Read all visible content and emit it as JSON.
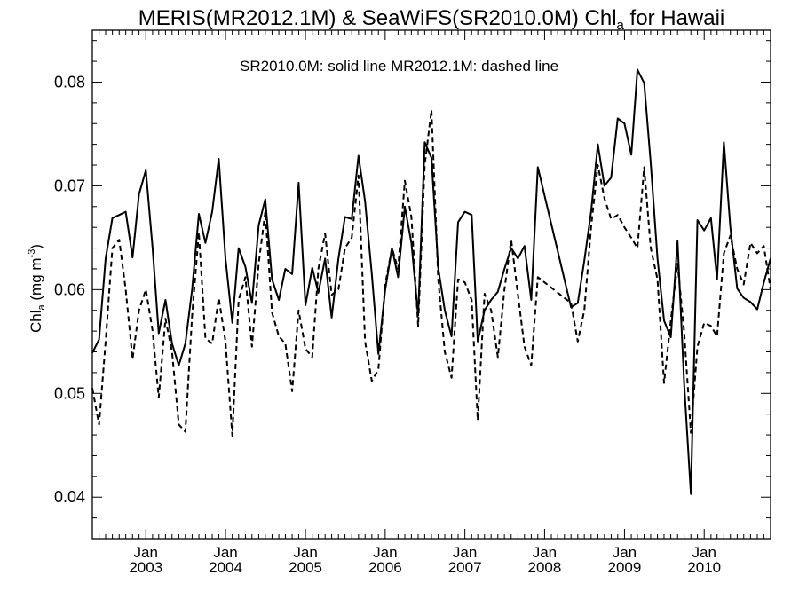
{
  "chart_data": {
    "type": "line",
    "title": {
      "main": "MERIS(MR2012.1M) & SeaWiFS(SR2010.0M)  Chl",
      "sub": "a",
      "tail": " for Hawaii"
    },
    "ylabel": {
      "main": "Chl",
      "sub": "a",
      "units": " (mg m",
      "sup": "-3",
      "close": ")"
    },
    "annotation": "SR2010.0M: solid line   MR2012.1M: dashed line",
    "xlim": [
      "2002-05-01",
      "2010-11-01"
    ],
    "ylim": [
      0.036,
      0.085
    ],
    "yticks": [
      {
        "value": 0.04,
        "label": "0.04"
      },
      {
        "value": 0.05,
        "label": "0.05"
      },
      {
        "value": 0.06,
        "label": "0.06"
      },
      {
        "value": 0.07,
        "label": "0.07"
      },
      {
        "value": 0.08,
        "label": "0.08"
      }
    ],
    "xticks": [
      {
        "date": "2003-01-01",
        "month": "Jan",
        "year": "2003"
      },
      {
        "date": "2004-01-01",
        "month": "Jan",
        "year": "2004"
      },
      {
        "date": "2005-01-01",
        "month": "Jan",
        "year": "2005"
      },
      {
        "date": "2006-01-01",
        "month": "Jan",
        "year": "2006"
      },
      {
        "date": "2007-01-01",
        "month": "Jan",
        "year": "2007"
      },
      {
        "date": "2008-01-01",
        "month": "Jan",
        "year": "2008"
      },
      {
        "date": "2009-01-01",
        "month": "Jan",
        "year": "2009"
      },
      {
        "date": "2010-01-01",
        "month": "Jan",
        "year": "2010"
      }
    ],
    "grid": false,
    "series": [
      {
        "name": "SR2010.0M",
        "style": "solid",
        "color": "#000000",
        "points": [
          [
            "2002-05-01",
            0.0539
          ],
          [
            "2002-06-01",
            0.0552
          ],
          [
            "2002-07-01",
            0.063
          ],
          [
            "2002-08-01",
            0.0669
          ],
          [
            "2002-09-01",
            0.0672
          ],
          [
            "2002-10-01",
            0.0675
          ],
          [
            "2002-11-01",
            0.0631
          ],
          [
            "2002-12-01",
            0.0692
          ],
          [
            "2003-01-01",
            0.0715
          ],
          [
            "2003-02-01",
            0.064
          ],
          [
            "2003-03-01",
            0.0558
          ],
          [
            "2003-04-01",
            0.059
          ],
          [
            "2003-05-01",
            0.0548
          ],
          [
            "2003-06-01",
            0.0527
          ],
          [
            "2003-07-01",
            0.0548
          ],
          [
            "2003-08-01",
            0.06
          ],
          [
            "2003-09-01",
            0.0673
          ],
          [
            "2003-10-01",
            0.0645
          ],
          [
            "2003-11-01",
            0.0675
          ],
          [
            "2003-12-01",
            0.0726
          ],
          [
            "2004-01-01",
            0.063
          ],
          [
            "2004-02-01",
            0.0568
          ],
          [
            "2004-03-01",
            0.064
          ],
          [
            "2004-04-01",
            0.0622
          ],
          [
            "2004-05-01",
            0.0587
          ],
          [
            "2004-06-01",
            0.0662
          ],
          [
            "2004-07-01",
            0.0687
          ],
          [
            "2004-08-01",
            0.061
          ],
          [
            "2004-09-01",
            0.059
          ],
          [
            "2004-10-01",
            0.062
          ],
          [
            "2004-11-01",
            0.0615
          ],
          [
            "2004-12-01",
            0.0703
          ],
          [
            "2005-01-01",
            0.0585
          ],
          [
            "2005-02-01",
            0.0621
          ],
          [
            "2005-03-01",
            0.0597
          ],
          [
            "2005-04-01",
            0.063
          ],
          [
            "2005-05-01",
            0.0573
          ],
          [
            "2005-06-01",
            0.063
          ],
          [
            "2005-07-01",
            0.067
          ],
          [
            "2005-08-01",
            0.0668
          ],
          [
            "2005-09-01",
            0.0729
          ],
          [
            "2005-10-01",
            0.0685
          ],
          [
            "2005-11-01",
            0.0615
          ],
          [
            "2005-12-01",
            0.0538
          ],
          [
            "2006-01-01",
            0.06
          ],
          [
            "2006-02-01",
            0.064
          ],
          [
            "2006-03-01",
            0.0612
          ],
          [
            "2006-04-01",
            0.068
          ],
          [
            "2006-05-01",
            0.0645
          ],
          [
            "2006-06-01",
            0.0575
          ],
          [
            "2006-07-01",
            0.0742
          ],
          [
            "2006-08-01",
            0.0727
          ],
          [
            "2006-09-01",
            0.0621
          ],
          [
            "2006-10-01",
            0.058
          ],
          [
            "2006-11-01",
            0.0555
          ],
          [
            "2006-12-01",
            0.0665
          ],
          [
            "2007-01-01",
            0.0675
          ],
          [
            "2007-02-01",
            0.0672
          ],
          [
            "2007-03-01",
            0.055
          ],
          [
            "2007-04-01",
            0.058
          ],
          [
            "2007-05-01",
            0.059
          ],
          [
            "2007-06-01",
            0.0598
          ],
          [
            "2007-07-01",
            0.062
          ],
          [
            "2007-08-01",
            0.064
          ],
          [
            "2007-09-01",
            0.063
          ],
          [
            "2007-10-01",
            0.0642
          ],
          [
            "2007-11-01",
            0.059
          ],
          [
            "2007-12-01",
            0.0718
          ],
          [
            "2008-05-01",
            0.0583
          ],
          [
            "2008-06-01",
            0.0587
          ],
          [
            "2008-07-01",
            0.0628
          ],
          [
            "2008-08-01",
            0.0675
          ],
          [
            "2008-09-01",
            0.074
          ],
          [
            "2008-10-01",
            0.07
          ],
          [
            "2008-11-01",
            0.0708
          ],
          [
            "2008-12-01",
            0.0765
          ],
          [
            "2009-01-01",
            0.076
          ],
          [
            "2009-02-01",
            0.073
          ],
          [
            "2009-03-01",
            0.0812
          ],
          [
            "2009-04-01",
            0.0799
          ],
          [
            "2009-05-01",
            0.0722
          ],
          [
            "2009-06-01",
            0.063
          ],
          [
            "2009-07-01",
            0.057
          ],
          [
            "2009-08-01",
            0.0554
          ],
          [
            "2009-09-01",
            0.0647
          ],
          [
            "2009-10-01",
            0.051
          ],
          [
            "2009-11-01",
            0.0403
          ],
          [
            "2009-12-01",
            0.0667
          ],
          [
            "2010-01-01",
            0.0657
          ],
          [
            "2010-02-01",
            0.0669
          ],
          [
            "2010-03-01",
            0.061
          ],
          [
            "2010-04-01",
            0.0742
          ],
          [
            "2010-05-01",
            0.066
          ],
          [
            "2010-06-01",
            0.0601
          ],
          [
            "2010-07-01",
            0.0592
          ],
          [
            "2010-08-01",
            0.0588
          ],
          [
            "2010-09-01",
            0.0581
          ],
          [
            "2010-10-01",
            0.0607
          ],
          [
            "2010-11-01",
            0.063
          ]
        ]
      },
      {
        "name": "MR2012.1M",
        "style": "dashed",
        "color": "#000000",
        "points": [
          [
            "2002-05-01",
            0.0505
          ],
          [
            "2002-06-01",
            0.047
          ],
          [
            "2002-07-01",
            0.055
          ],
          [
            "2002-08-01",
            0.064
          ],
          [
            "2002-09-01",
            0.0648
          ],
          [
            "2002-10-01",
            0.06
          ],
          [
            "2002-11-01",
            0.0533
          ],
          [
            "2002-12-01",
            0.058
          ],
          [
            "2003-01-01",
            0.06
          ],
          [
            "2003-02-01",
            0.056
          ],
          [
            "2003-03-01",
            0.0496
          ],
          [
            "2003-04-01",
            0.0572
          ],
          [
            "2003-05-01",
            0.054
          ],
          [
            "2003-06-01",
            0.047
          ],
          [
            "2003-07-01",
            0.0463
          ],
          [
            "2003-08-01",
            0.0575
          ],
          [
            "2003-09-01",
            0.0655
          ],
          [
            "2003-10-01",
            0.0553
          ],
          [
            "2003-11-01",
            0.0548
          ],
          [
            "2003-12-01",
            0.0592
          ],
          [
            "2004-01-01",
            0.055
          ],
          [
            "2004-02-01",
            0.0459
          ],
          [
            "2004-03-01",
            0.059
          ],
          [
            "2004-04-01",
            0.0612
          ],
          [
            "2004-05-01",
            0.0545
          ],
          [
            "2004-06-01",
            0.0625
          ],
          [
            "2004-07-01",
            0.0675
          ],
          [
            "2004-08-01",
            0.0578
          ],
          [
            "2004-09-01",
            0.0555
          ],
          [
            "2004-10-01",
            0.0548
          ],
          [
            "2004-11-01",
            0.0502
          ],
          [
            "2004-12-01",
            0.058
          ],
          [
            "2005-01-01",
            0.0543
          ],
          [
            "2005-02-01",
            0.0535
          ],
          [
            "2005-03-01",
            0.062
          ],
          [
            "2005-04-01",
            0.0654
          ],
          [
            "2005-05-01",
            0.0595
          ],
          [
            "2005-06-01",
            0.06
          ],
          [
            "2005-07-01",
            0.064
          ],
          [
            "2005-08-01",
            0.065
          ],
          [
            "2005-09-01",
            0.071
          ],
          [
            "2005-10-01",
            0.055
          ],
          [
            "2005-11-01",
            0.0512
          ],
          [
            "2005-12-01",
            0.0523
          ],
          [
            "2006-01-01",
            0.0605
          ],
          [
            "2006-02-01",
            0.064
          ],
          [
            "2006-03-01",
            0.062
          ],
          [
            "2006-04-01",
            0.0705
          ],
          [
            "2006-05-01",
            0.067
          ],
          [
            "2006-06-01",
            0.0565
          ],
          [
            "2006-07-01",
            0.072
          ],
          [
            "2006-08-01",
            0.0773
          ],
          [
            "2006-09-01",
            0.061
          ],
          [
            "2006-10-01",
            0.054
          ],
          [
            "2006-11-01",
            0.0515
          ],
          [
            "2006-12-01",
            0.061
          ],
          [
            "2007-01-01",
            0.0607
          ],
          [
            "2007-02-01",
            0.059
          ],
          [
            "2007-03-01",
            0.0474
          ],
          [
            "2007-04-01",
            0.0596
          ],
          [
            "2007-05-01",
            0.058
          ],
          [
            "2007-06-01",
            0.0535
          ],
          [
            "2007-07-01",
            0.06
          ],
          [
            "2007-08-01",
            0.0648
          ],
          [
            "2007-09-01",
            0.0595
          ],
          [
            "2007-10-01",
            0.0545
          ],
          [
            "2007-11-01",
            0.0527
          ],
          [
            "2007-12-01",
            0.0612
          ],
          [
            "2008-05-01",
            0.0587
          ],
          [
            "2008-06-01",
            0.055
          ],
          [
            "2008-07-01",
            0.058
          ],
          [
            "2008-08-01",
            0.066
          ],
          [
            "2008-09-01",
            0.072
          ],
          [
            "2008-10-01",
            0.0688
          ],
          [
            "2008-11-01",
            0.0668
          ],
          [
            "2008-12-01",
            0.0672
          ],
          [
            "2009-01-01",
            0.066
          ],
          [
            "2009-02-01",
            0.065
          ],
          [
            "2009-03-01",
            0.064
          ],
          [
            "2009-04-01",
            0.0718
          ],
          [
            "2009-05-01",
            0.064
          ],
          [
            "2009-06-01",
            0.061
          ],
          [
            "2009-07-01",
            0.051
          ],
          [
            "2009-08-01",
            0.057
          ],
          [
            "2009-09-01",
            0.0625
          ],
          [
            "2009-10-01",
            0.056
          ],
          [
            "2009-11-01",
            0.0462
          ],
          [
            "2009-12-01",
            0.0545
          ],
          [
            "2010-01-01",
            0.0568
          ],
          [
            "2010-02-01",
            0.0565
          ],
          [
            "2010-03-01",
            0.0555
          ],
          [
            "2010-04-01",
            0.0635
          ],
          [
            "2010-05-01",
            0.0652
          ],
          [
            "2010-06-01",
            0.062
          ],
          [
            "2010-07-01",
            0.0605
          ],
          [
            "2010-08-01",
            0.0645
          ],
          [
            "2010-09-01",
            0.0635
          ],
          [
            "2010-10-01",
            0.0642
          ],
          [
            "2010-11-01",
            0.06
          ]
        ]
      }
    ]
  }
}
